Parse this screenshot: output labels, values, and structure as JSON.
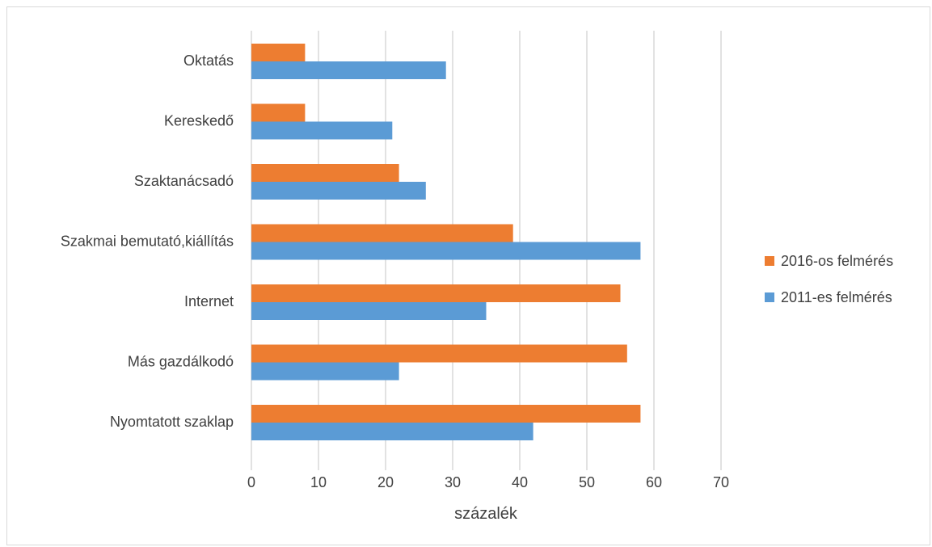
{
  "chart_data": {
    "type": "bar",
    "orientation": "horizontal",
    "categories": [
      "Oktatás",
      "Kereskedő",
      "Szaktanácsadó",
      "Szakmai bemutató,kiállítás",
      "Internet",
      "Más gazdálkodó",
      "Nyomtatott szaklap"
    ],
    "series": [
      {
        "name": "2016-os felmérés",
        "color": "#ED7D31",
        "values": [
          8,
          8,
          22,
          39,
          55,
          56,
          58
        ]
      },
      {
        "name": "2011-es felmérés",
        "color": "#5B9BD5",
        "values": [
          29,
          21,
          26,
          58,
          35,
          22,
          42
        ]
      }
    ],
    "xlim": [
      0,
      70
    ],
    "xticks": [
      "0",
      "10",
      "20",
      "30",
      "40",
      "50",
      "60",
      "70"
    ],
    "xlabel": "százalék",
    "grid": true,
    "legend_position": "right"
  }
}
